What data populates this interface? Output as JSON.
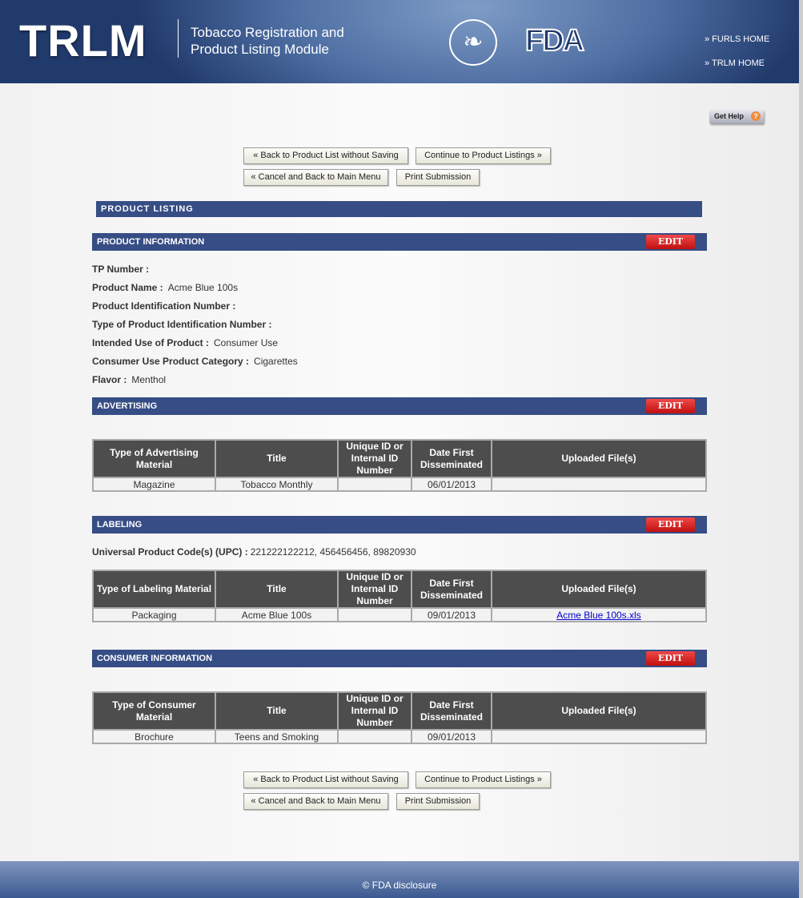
{
  "header": {
    "logo": "TRLM",
    "subtitle": "Tobacco Registration and Product Listing Module",
    "hhs_logo": "HHS seal",
    "fda_logo": "FDA",
    "links": [
      "» FURLS HOME",
      "» TRLM HOME"
    ]
  },
  "help": {
    "label": "Get Help",
    "icon": "?"
  },
  "buttons": {
    "back": "« Back to Product List without Saving",
    "continue": "Continue to Product Listings »",
    "cancel": "« Cancel and Back to Main Menu",
    "print": "Print Submission"
  },
  "page_title": "PRODUCT LISTING",
  "edit_label": "EDIT",
  "product_info": {
    "title": "PRODUCT INFORMATION",
    "fields": [
      {
        "label": "TP Number :",
        "value": ""
      },
      {
        "label": "Product Name :",
        "value": "Acme Blue 100s"
      },
      {
        "label": "Product Identification Number :",
        "value": ""
      },
      {
        "label": "Type of Product Identification Number :",
        "value": ""
      },
      {
        "label": "Intended Use of Product :",
        "value": "Consumer Use"
      },
      {
        "label": "Consumer Use Product Category :",
        "value": "Cigarettes"
      },
      {
        "label": "Flavor :",
        "value": "Menthol"
      }
    ]
  },
  "advertising": {
    "title": "ADVERTISING",
    "columns": [
      "Type of Advertising Material",
      "Title",
      "Unique ID or Internal ID Number",
      "Date First Disseminated",
      "Uploaded File(s)"
    ],
    "rows": [
      [
        "Magazine",
        "Tobacco Monthly",
        "",
        "06/01/2013",
        ""
      ]
    ]
  },
  "labeling": {
    "title": "LABELING",
    "upc_label": "Universal Product Code(s) (UPC) :",
    "upc_value": "221222122212, 456456456, 89820930",
    "columns": [
      "Type of Labeling Material",
      "Title",
      "Unique ID or Internal ID Number",
      "Date First Disseminated",
      "Uploaded File(s)"
    ],
    "rows": [
      [
        "Packaging",
        "Acme Blue 100s",
        "",
        "09/01/2013",
        "Acme Blue 100s.xls"
      ]
    ]
  },
  "consumer": {
    "title": "CONSUMER INFORMATION",
    "columns": [
      "Type of Consumer Material",
      "Title",
      "Unique ID or Internal ID Number",
      "Date First Disseminated",
      "Uploaded File(s)"
    ],
    "rows": [
      [
        "Brochure",
        "Teens and Smoking",
        "",
        "09/01/2013",
        ""
      ]
    ]
  },
  "footer": "© FDA disclosure"
}
